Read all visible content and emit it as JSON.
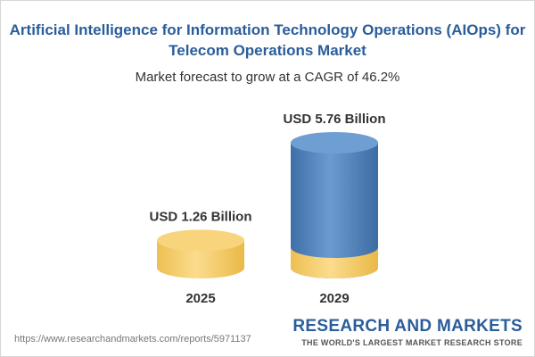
{
  "chart_data": {
    "type": "bar",
    "title": "Artificial Intelligence for Information Technology Operations (AIOps) for Telecom Operations Market",
    "subtitle": "Market forecast to grow at a CAGR of 46.2%",
    "categories": [
      "2025",
      "2029"
    ],
    "values": [
      1.26,
      5.76
    ],
    "value_labels": [
      "USD 1.26 Billion",
      "USD 5.76 Billion"
    ],
    "unit": "USD Billion",
    "ylim": [
      0,
      5.76
    ],
    "grid": false,
    "colors": {
      "bar_2025": "#f5cc6a",
      "bar_2029_top": "#4d80b8",
      "bar_2029_base": "#f5cc6a",
      "title": "#2a5d9a"
    }
  },
  "footer": {
    "url": "https://www.researchandmarkets.com/reports/5971137",
    "brand_name": "RESEARCH AND MARKETS",
    "brand_tagline": "THE WORLD'S LARGEST MARKET RESEARCH STORE"
  }
}
